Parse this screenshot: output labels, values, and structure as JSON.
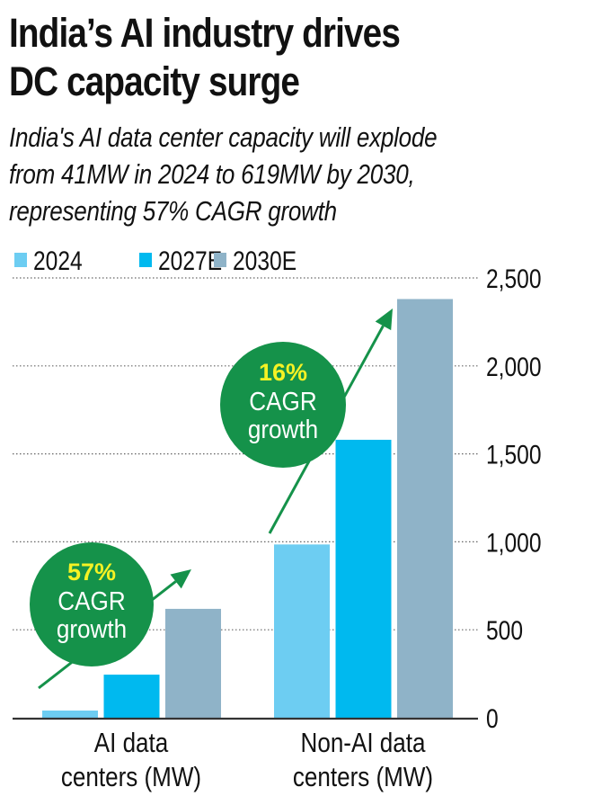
{
  "header": {
    "title_line1": "India’s AI industry drives",
    "title_line2": "DC capacity surge",
    "subtitle_line1": "India's AI data center capacity will explode",
    "subtitle_line2": "from 41MW in 2024 to 619MW by 2030,",
    "subtitle_line3": "representing 57% CAGR growth"
  },
  "chart_data": {
    "type": "bar",
    "title": "India’s AI industry drives DC capacity surge",
    "subtitle": "India's AI data center capacity will explode from 41MW in 2024 to 619MW by 2030, representing 57% CAGR growth",
    "categories": [
      [
        "AI data",
        "centers (MW)"
      ],
      [
        "Non-AI data",
        "centers (MW)"
      ]
    ],
    "series": [
      {
        "name": "2024",
        "color": "#6dcdf2",
        "values": [
          41,
          985
        ]
      },
      {
        "name": "2027E",
        "color": "#00b9ef",
        "values": [
          245,
          1580
        ]
      },
      {
        "name": "2030E",
        "color": "#8fb3c8",
        "values": [
          619,
          2380
        ]
      }
    ],
    "xlabel": "",
    "ylabel": "",
    "ylim": [
      0,
      2500
    ],
    "yticks": [
      0,
      500,
      1000,
      1500,
      2000,
      2500
    ],
    "ytick_labels": [
      "0",
      "500",
      "1,000",
      "1,500",
      "2,000",
      "2,500"
    ],
    "y_axis_side": "right",
    "grid": true,
    "legend": "top-left",
    "annotations": [
      {
        "category": "AI data centers (MW)",
        "value_text": "57%",
        "line2": "CAGR",
        "line3": "growth"
      },
      {
        "category": "Non-AI data centers (MW)",
        "value_text": "16%",
        "line2": "CAGR",
        "line3": "growth"
      }
    ],
    "colors": {
      "badge_green": "#15924a",
      "badge_highlight": "#f5f224",
      "badge_text": "#ffffff",
      "axis": "#333333"
    }
  }
}
